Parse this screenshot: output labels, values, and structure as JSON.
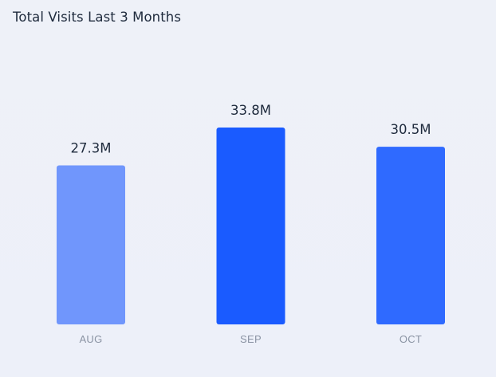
{
  "chart_data": {
    "type": "bar",
    "title": "Total Visits Last 3 Months",
    "categories": [
      "AUG",
      "SEP",
      "OCT"
    ],
    "values": [
      27.3,
      33.8,
      30.5
    ],
    "value_labels": [
      "27.3M",
      "33.8M",
      "30.5M"
    ],
    "unit": "M",
    "xlabel": "",
    "ylabel": "",
    "ylim": [
      0,
      40
    ],
    "grid": false,
    "legend": "none",
    "bar_colors": [
      "#7096fc",
      "#1a5bff",
      "#2f6aff"
    ]
  }
}
